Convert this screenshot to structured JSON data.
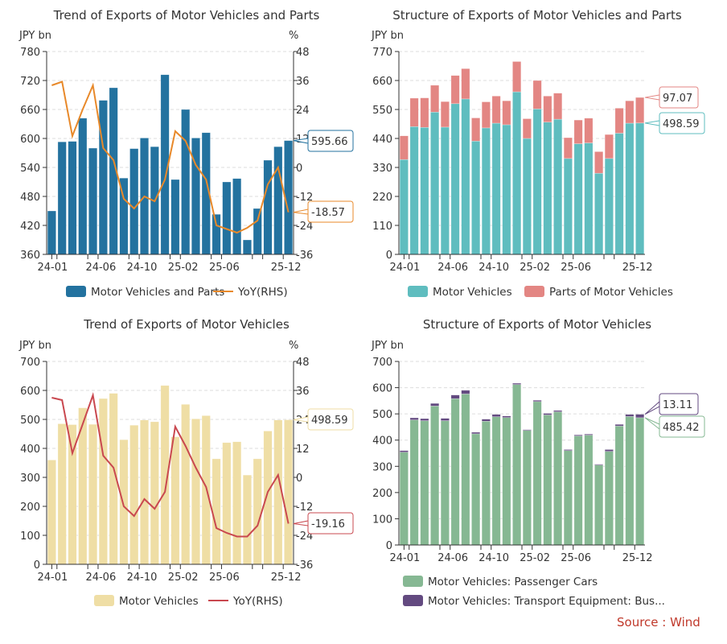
{
  "source": "Source : Wind",
  "colors": {
    "source": "#c0392b"
  },
  "chart_data": [
    {
      "type": "bar+line",
      "title": "Trend of Exports of Motor Vehicles and Parts",
      "ylabel_left": "JPY bn",
      "ylabel_right": "%",
      "ylim": [
        360,
        780
      ],
      "yticks": [
        360,
        420,
        480,
        540,
        600,
        660,
        720,
        780
      ],
      "ylim_right": [
        -36,
        48
      ],
      "yticks_right": [
        -36,
        -24,
        -12,
        0,
        12,
        24,
        36,
        48
      ],
      "categories": [
        "24-01",
        "24-02",
        "24-03",
        "24-04",
        "24-05",
        "24-06",
        "24-07",
        "24-08",
        "24-09",
        "24-10",
        "24-11",
        "24-12",
        "25-01",
        "25-02",
        "25-03",
        "25-04",
        "25-05",
        "25-06",
        "25-07",
        "25-08",
        "25-09",
        "25-10",
        "25-11",
        "25-12"
      ],
      "xtick_labels": [
        "24-01",
        "24-06",
        "24-10",
        "25-02",
        "25-06",
        "25-12"
      ],
      "grid": true,
      "legend_position": "bottom",
      "series": [
        {
          "name": "Motor Vehicles and Parts",
          "kind": "bar",
          "axis": "left",
          "color": "#23729f",
          "values": [
            450,
            593,
            594,
            642,
            580,
            679,
            705,
            518,
            579,
            601,
            583,
            732,
            515,
            660,
            601,
            612,
            443,
            510,
            517,
            390,
            455,
            555,
            583,
            595.66
          ],
          "last_label": "595.66"
        },
        {
          "name": "YoY(RHS)",
          "kind": "line",
          "axis": "right",
          "color": "#e8892a",
          "values": [
            34,
            35.5,
            13,
            24,
            34,
            8,
            3,
            -13,
            -17,
            -12,
            -14,
            -5,
            15,
            11,
            1,
            -5,
            -24,
            -25.5,
            -27,
            -25,
            -22,
            -7,
            0,
            -18.57
          ],
          "last_label": "-18.57"
        }
      ]
    },
    {
      "type": "stacked-bar",
      "title": "Structure of Exports of Motor Vehicles and Parts",
      "ylabel_left": "JPY bn",
      "ylim": [
        0,
        770
      ],
      "yticks": [
        0,
        110,
        220,
        330,
        440,
        550,
        660,
        770
      ],
      "categories": [
        "24-01",
        "24-02",
        "24-03",
        "24-04",
        "24-05",
        "24-06",
        "24-07",
        "24-08",
        "24-09",
        "24-10",
        "24-11",
        "24-12",
        "25-01",
        "25-02",
        "25-03",
        "25-04",
        "25-05",
        "25-06",
        "25-07",
        "25-08",
        "25-09",
        "25-10",
        "25-11",
        "25-12"
      ],
      "xtick_labels": [
        "24-01",
        "24-06",
        "24-10",
        "25-02",
        "25-06",
        "25-12"
      ],
      "grid": true,
      "legend_position": "bottom",
      "series": [
        {
          "name": "Motor Vehicles",
          "kind": "bar",
          "color": "#5fbdbf",
          "values": [
            360,
            485,
            482,
            540,
            483,
            572,
            590,
            430,
            480,
            498,
            492,
            617,
            440,
            552,
            502,
            513,
            364,
            420,
            423,
            308,
            364,
            460,
            498,
            498.59
          ],
          "last_label": "498.59"
        },
        {
          "name": "Parts of Motor Vehicles",
          "kind": "bar",
          "color": "#e38683",
          "values": [
            90,
            108,
            112,
            102,
            97,
            107,
            115,
            88,
            99,
            103,
            91,
            115,
            75,
            108,
            99,
            99,
            79,
            90,
            94,
            82,
            91,
            95,
            85,
            97.07
          ],
          "last_label": "97.07"
        }
      ]
    },
    {
      "type": "bar+line",
      "title": "Trend of Exports of Motor Vehicles",
      "ylabel_left": "JPY bn",
      "ylabel_right": "%",
      "ylim": [
        0,
        700
      ],
      "yticks": [
        0,
        100,
        200,
        300,
        400,
        500,
        600,
        700
      ],
      "ylim_right": [
        -36,
        48
      ],
      "yticks_right": [
        -36,
        -24,
        -12,
        0,
        12,
        24,
        36,
        48
      ],
      "categories": [
        "24-01",
        "24-02",
        "24-03",
        "24-04",
        "24-05",
        "24-06",
        "24-07",
        "24-08",
        "24-09",
        "24-10",
        "24-11",
        "24-12",
        "25-01",
        "25-02",
        "25-03",
        "25-04",
        "25-05",
        "25-06",
        "25-07",
        "25-08",
        "25-09",
        "25-10",
        "25-11",
        "25-12"
      ],
      "xtick_labels": [
        "24-01",
        "24-06",
        "24-10",
        "25-02",
        "25-06",
        "25-12"
      ],
      "grid": true,
      "legend_position": "bottom",
      "series": [
        {
          "name": "Motor Vehicles",
          "kind": "bar",
          "axis": "left",
          "color": "#efdea5",
          "values": [
            360,
            485,
            482,
            540,
            483,
            572,
            590,
            430,
            480,
            498,
            492,
            617,
            440,
            552,
            502,
            513,
            364,
            420,
            423,
            308,
            364,
            460,
            498,
            498.59
          ],
          "last_label": "498.59"
        },
        {
          "name": "YoY(RHS)",
          "kind": "line",
          "axis": "right",
          "color": "#c9484f",
          "values": [
            33,
            32,
            10,
            22,
            34,
            9,
            4,
            -12,
            -16,
            -9,
            -13,
            -6,
            21,
            13,
            4,
            -4,
            -21,
            -23,
            -24.5,
            -24.5,
            -20,
            -6,
            1,
            -19.16
          ],
          "last_label": "-19.16"
        }
      ]
    },
    {
      "type": "stacked-bar",
      "title": "Structure of Exports of Motor Vehicles",
      "ylabel_left": "JPY bn",
      "ylim": [
        0,
        700
      ],
      "yticks": [
        0,
        100,
        200,
        300,
        400,
        500,
        600,
        700
      ],
      "categories": [
        "24-01",
        "24-02",
        "24-03",
        "24-04",
        "24-05",
        "24-06",
        "24-07",
        "24-08",
        "24-09",
        "24-10",
        "24-11",
        "24-12",
        "25-01",
        "25-02",
        "25-03",
        "25-04",
        "25-05",
        "25-06",
        "25-07",
        "25-08",
        "25-09",
        "25-10",
        "25-11",
        "25-12"
      ],
      "xtick_labels": [
        "24-01",
        "24-06",
        "24-10",
        "25-02",
        "25-06",
        "25-12"
      ],
      "grid": true,
      "legend_position": "bottom",
      "series": [
        {
          "name": "Motor Vehicles: Passenger Cars",
          "kind": "bar",
          "color": "#86b893",
          "values": [
            354,
            477,
            474,
            530,
            474,
            558,
            576,
            424,
            472,
            489,
            486,
            612,
            437,
            547,
            496,
            508,
            360,
            416,
            419,
            305,
            357,
            454,
            490,
            485.42
          ],
          "last_label": "485.42"
        },
        {
          "name": "Motor Vehicles: Transport Equipment: Bus...",
          "kind": "bar",
          "color": "#634a80",
          "values": [
            6,
            8,
            8,
            10,
            9,
            14,
            14,
            6,
            8,
            9,
            6,
            5,
            3,
            5,
            6,
            5,
            4,
            4,
            4,
            3,
            7,
            6,
            8,
            13.11
          ],
          "last_label": "13.11"
        }
      ]
    }
  ]
}
